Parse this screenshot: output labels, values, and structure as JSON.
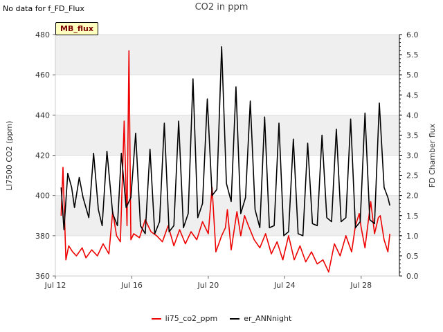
{
  "page": {
    "corner_note": "No data for f_FD_Flux",
    "badge_label": "MB_flux"
  },
  "chart_data": {
    "type": "line",
    "title": "CO2 in ppm",
    "xlabel": "",
    "ylabel": "LI7500 CO2 (ppm)",
    "y2label": "FD Chamber flux",
    "x_unit": "day of July 2019 (fractional)",
    "xlim": [
      12,
      30
    ],
    "ylim": [
      360,
      480
    ],
    "y2lim": [
      0.0,
      6.0
    ],
    "x_ticks": [
      {
        "value": 12,
        "label": "Jul 12"
      },
      {
        "value": 16,
        "label": "Jul 16"
      },
      {
        "value": 20,
        "label": "Jul 20"
      },
      {
        "value": 24,
        "label": "Jul 24"
      },
      {
        "value": 28,
        "label": "Jul 28"
      }
    ],
    "y_ticks": [
      360,
      380,
      400,
      420,
      440,
      460,
      480
    ],
    "y2_ticks": [
      "0.0",
      "0.5",
      "1.0",
      "1.5",
      "2.0",
      "2.5",
      "3.0",
      "3.5",
      "4.0",
      "4.5",
      "5.0",
      "5.5",
      "6.0"
    ],
    "bands": [
      [
        460,
        480
      ],
      [
        420,
        440
      ],
      [
        380,
        400
      ]
    ],
    "legend_position": "bottom-center",
    "series": [
      {
        "name": "li75_co2_ppm",
        "color": "#ee0000",
        "x": [
          12.3,
          12.4,
          12.55,
          12.7,
          12.9,
          13.1,
          13.4,
          13.6,
          13.9,
          14.2,
          14.5,
          14.8,
          15.0,
          15.2,
          15.4,
          15.6,
          15.75,
          15.85,
          15.95,
          16.1,
          16.4,
          16.7,
          17.0,
          17.3,
          17.6,
          17.9,
          18.2,
          18.5,
          18.8,
          19.1,
          19.4,
          19.7,
          20.0,
          20.2,
          20.4,
          20.7,
          20.9,
          21.0,
          21.2,
          21.5,
          21.7,
          21.9,
          22.1,
          22.4,
          22.7,
          23.0,
          23.3,
          23.6,
          23.9,
          24.2,
          24.5,
          24.8,
          25.1,
          25.4,
          25.7,
          26.0,
          26.3,
          26.6,
          26.9,
          27.2,
          27.5,
          27.7,
          27.9,
          28.0,
          28.2,
          28.5,
          28.7,
          28.9,
          29.0,
          29.2,
          29.4,
          29.5
        ],
        "values": [
          390,
          414,
          368,
          375,
          372,
          370,
          374,
          369,
          373,
          370,
          376,
          371,
          392,
          380,
          377,
          437,
          385,
          472,
          378,
          381,
          379,
          388,
          382,
          380,
          377,
          385,
          375,
          383,
          376,
          382,
          378,
          387,
          381,
          404,
          372,
          380,
          384,
          393,
          373,
          392,
          380,
          390,
          385,
          378,
          374,
          381,
          371,
          377,
          368,
          380,
          368,
          375,
          367,
          372,
          366,
          368,
          362,
          376,
          370,
          380,
          372,
          385,
          391,
          384,
          374,
          397,
          381,
          389,
          390,
          378,
          372,
          381
        ]
      },
      {
        "name": "er_ANNnight",
        "color": "#000000",
        "x": [
          12.3,
          12.45,
          12.65,
          12.85,
          13.0,
          13.25,
          13.45,
          13.75,
          14.0,
          14.25,
          14.45,
          14.7,
          15.0,
          15.25,
          15.45,
          15.7,
          15.95,
          16.2,
          16.45,
          16.7,
          16.95,
          17.2,
          17.45,
          17.7,
          17.95,
          18.2,
          18.45,
          18.7,
          18.95,
          19.2,
          19.45,
          19.7,
          19.95,
          20.2,
          20.45,
          20.7,
          20.95,
          21.2,
          21.45,
          21.7,
          21.95,
          22.2,
          22.45,
          22.7,
          22.95,
          23.2,
          23.45,
          23.7,
          23.95,
          24.2,
          24.45,
          24.7,
          24.95,
          25.2,
          25.45,
          25.7,
          25.95,
          26.2,
          26.45,
          26.7,
          26.95,
          27.2,
          27.45,
          27.7,
          27.95,
          28.2,
          28.45,
          28.7,
          28.95,
          29.2,
          29.4,
          29.5
        ],
        "values": [
          2.2,
          1.15,
          2.55,
          2.2,
          1.7,
          2.45,
          1.95,
          1.45,
          3.05,
          1.65,
          1.25,
          3.1,
          1.55,
          1.25,
          3.05,
          1.7,
          1.95,
          3.55,
          1.25,
          1.05,
          3.15,
          1.05,
          1.35,
          3.8,
          1.1,
          1.25,
          3.85,
          1.2,
          1.55,
          4.9,
          1.45,
          1.8,
          4.4,
          2.0,
          2.15,
          5.7,
          2.3,
          1.85,
          4.7,
          1.55,
          1.95,
          4.35,
          1.65,
          1.2,
          3.95,
          1.2,
          1.25,
          3.8,
          1.0,
          1.1,
          3.4,
          1.05,
          1.0,
          3.3,
          1.3,
          1.25,
          3.5,
          1.45,
          1.35,
          3.65,
          1.35,
          1.45,
          3.9,
          1.2,
          1.35,
          4.05,
          1.4,
          1.3,
          4.3,
          2.2,
          1.95,
          1.75
        ]
      }
    ]
  }
}
